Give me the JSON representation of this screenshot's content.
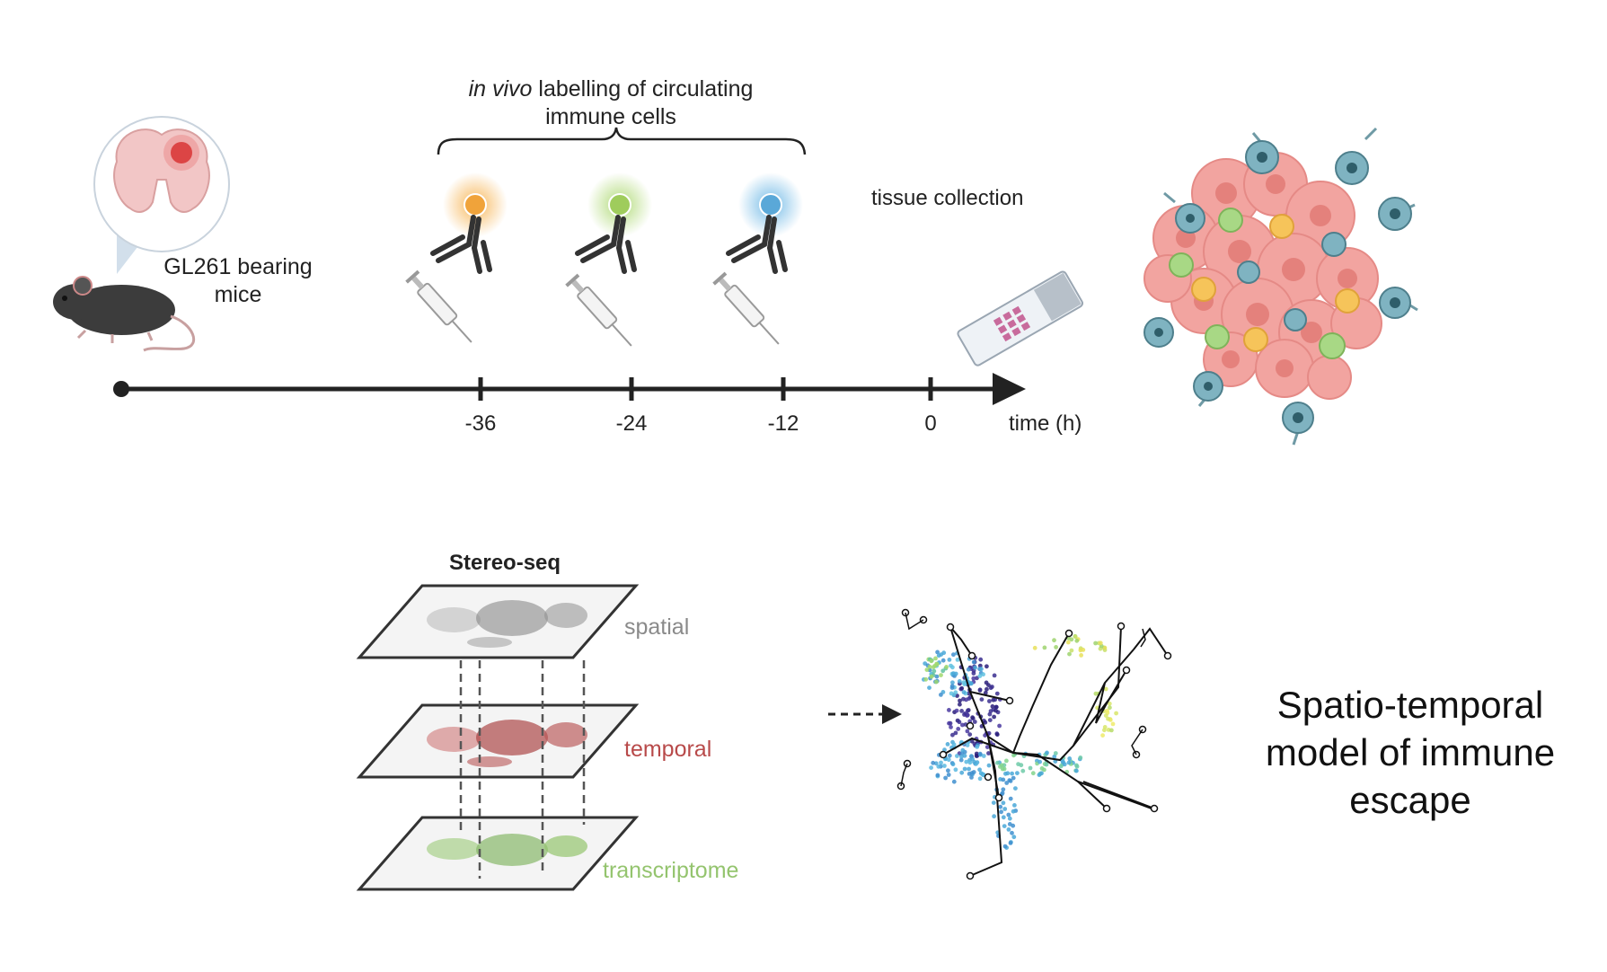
{
  "timeline": {
    "labelling_title_italic": "in vivo",
    "labelling_title_rest": " labelling of circulating",
    "labelling_title_line2": "immune cells",
    "mice_label_line1": "GL261 bearing",
    "mice_label_line2": "mice",
    "tissue_label": "tissue collection",
    "axis_label": "time (h)",
    "ticks": [
      "-36",
      "-24",
      "-12",
      "0"
    ],
    "label_colors": [
      "#f0a33a",
      "#9fcc5c",
      "#5aa8d8"
    ]
  },
  "stereo": {
    "title": "Stereo-seq",
    "layers": [
      {
        "label": "spatial",
        "color": "#8a8a8a"
      },
      {
        "label": "temporal",
        "color": "#b84a4a"
      },
      {
        "label": "transcriptome",
        "color": "#94c46e"
      }
    ]
  },
  "model": {
    "line1": "Spatio-temporal",
    "line2": "model of immune",
    "line3": "escape"
  },
  "icons": [
    "brain-icon",
    "mouse-icon",
    "antibody-icon",
    "syringe-icon",
    "slide-icon",
    "tumor-icon",
    "arrow-icon",
    "trajectory-icon"
  ]
}
